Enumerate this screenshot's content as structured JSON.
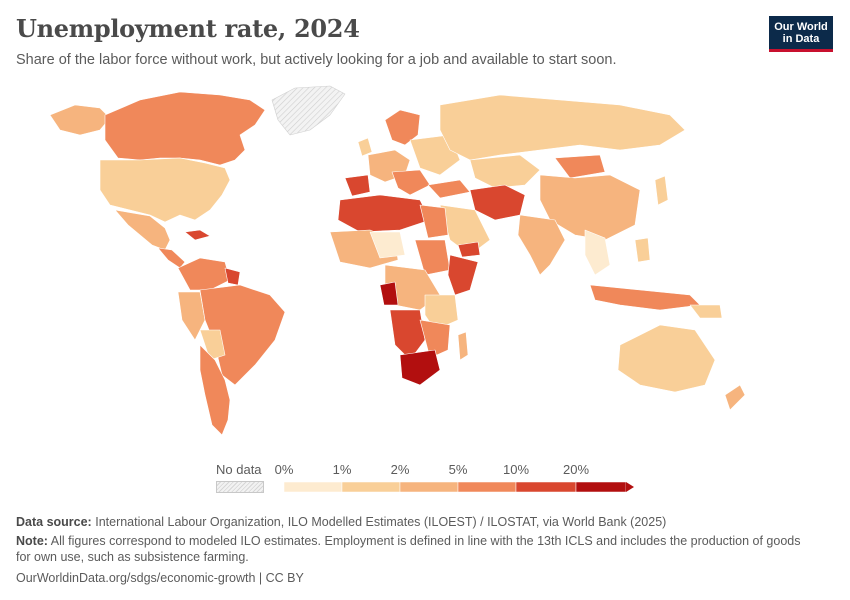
{
  "header": {
    "title": "Unemployment rate, 2024",
    "subtitle": "Share of the labor force without work, but actively looking for a job and available to start soon.",
    "logo_line1": "Our World",
    "logo_line2": "in Data"
  },
  "legend": {
    "no_data_label": "No data",
    "bins": [
      "0%",
      "1%",
      "2%",
      "5%",
      "10%",
      "20%"
    ],
    "colors": [
      "#fdebd0",
      "#f9cf98",
      "#f6b47e",
      "#f0885a",
      "#d9472f",
      "#b20f0f"
    ]
  },
  "colors": {
    "no_data": "#e6e6e6",
    "land_outline": "#ffffff"
  },
  "footer": {
    "source_label": "Data source:",
    "source_text": "International Labour Organization, ILO Modelled Estimates (ILOEST) / ILOSTAT, via World Bank (2025)",
    "note_label": "Note:",
    "note_text": "All figures correspond to modeled ILO estimates. Employment is defined in line with the 13th ICLS and includes the production of goods for own use, such as subsistence farming.",
    "url_text": "OurWorldinData.org/sdgs/economic-growth | CC BY"
  }
}
